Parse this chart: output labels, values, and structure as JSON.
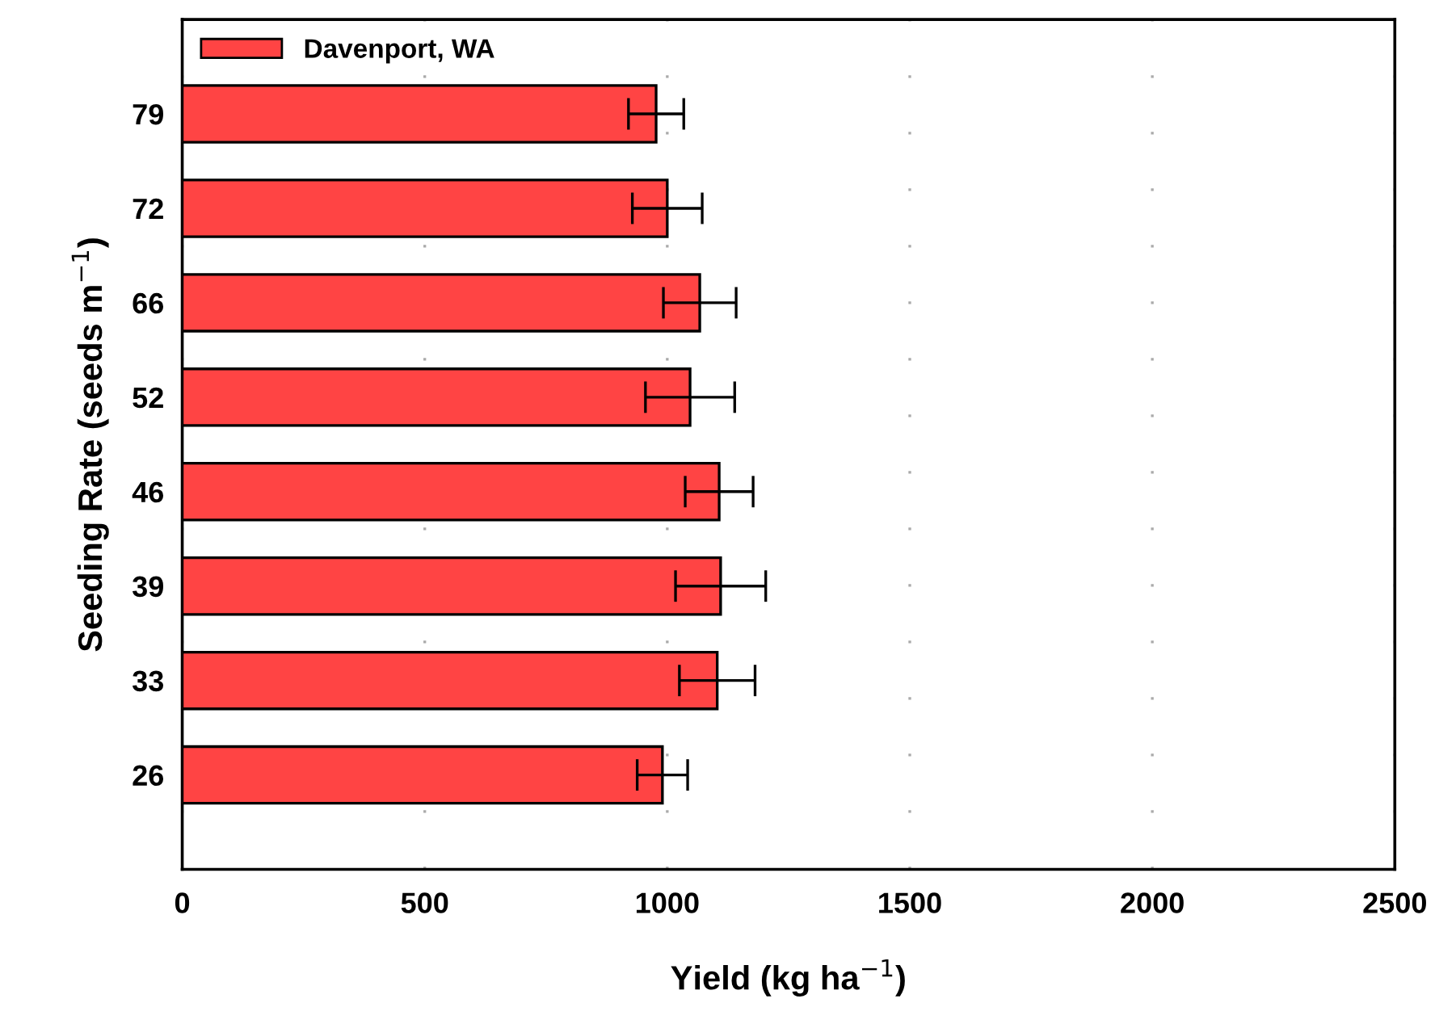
{
  "chart_data": {
    "type": "bar",
    "orientation": "horizontal",
    "categories": [
      "79",
      "72",
      "66",
      "52",
      "46",
      "39",
      "33",
      "26"
    ],
    "series": [
      {
        "name": "Davenport, WA",
        "color": "#ff4444",
        "values": [
          977,
          1000,
          1067,
          1047,
          1107,
          1110,
          1103,
          990
        ],
        "errors": [
          57,
          72,
          75,
          92,
          70,
          93,
          78,
          52
        ]
      }
    ],
    "xlim": [
      0,
      2500
    ],
    "xticks": [
      0,
      500,
      1000,
      1500,
      2000,
      2500
    ],
    "xlabel": "Yield (kg ha$^{−1}$)",
    "ylabel": "Seeding Rate (seeds m$^{−1}$)",
    "grid": "x",
    "legend": "top left"
  }
}
